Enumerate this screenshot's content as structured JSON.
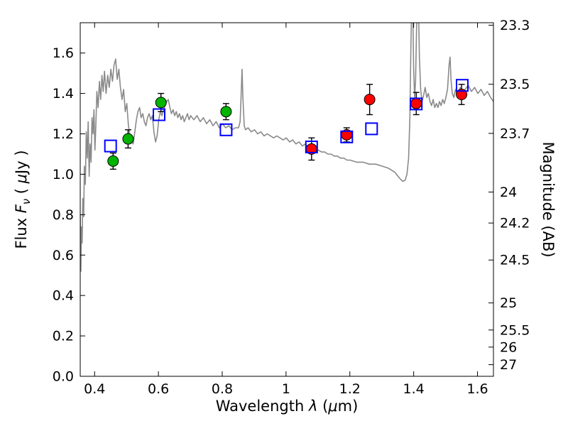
{
  "figure": {
    "background": "#ffffff",
    "frame_color": "#000000"
  },
  "chart_data": {
    "type": "scatter",
    "title": "",
    "xlabel": {
      "prefix": "Wavelength ",
      "symbol": "λ",
      "open": " (",
      "mu": "μ",
      "close": "m)"
    },
    "ylabel_left": {
      "prefix": "Flux ",
      "symbol": "F",
      "subscript": "ν",
      "open": " ( ",
      "mu": "μ",
      "close": "Jy )"
    },
    "ylabel_right": "Magnitude (AB)",
    "x_range": [
      0.355,
      1.65
    ],
    "y_range": [
      0.0,
      1.75
    ],
    "grid": false,
    "legend_position": "none",
    "x_ticks": [
      0.4,
      0.6,
      0.8,
      1.0,
      1.2,
      1.4,
      1.6
    ],
    "x_tick_labels": [
      "0.4",
      "0.6",
      "0.8",
      "1",
      "1.2",
      "1.4",
      "1.6"
    ],
    "y_ticks": [
      0.0,
      0.2,
      0.4,
      0.6,
      0.8,
      1.0,
      1.2,
      1.4,
      1.6
    ],
    "y_tick_labels": [
      "0.0",
      "0.2",
      "0.4",
      "0.6",
      "0.8",
      "1.0",
      "1.2",
      "1.4",
      "1.6"
    ],
    "right_axis": {
      "label": "Magnitude (AB)",
      "tick_values": [
        23.3,
        23.5,
        23.7,
        24.0,
        24.2,
        24.5,
        25.0,
        25.5,
        26.0,
        27.0
      ],
      "tick_labels": [
        "23.3",
        "23.5",
        "23.7",
        "24",
        "24.2",
        "24.5",
        "25",
        "25.5",
        "26",
        "27"
      ],
      "ab_zeropoint_ujy": 23.9
    },
    "series": [
      {
        "name": "model-spectrum",
        "type": "line",
        "color": "#8a8a8a",
        "linewidth": 1.6,
        "points": [
          [
            0.355,
            0.8
          ],
          [
            0.356,
            0.6
          ],
          [
            0.357,
            0.52
          ],
          [
            0.359,
            0.74
          ],
          [
            0.361,
            0.66
          ],
          [
            0.363,
            0.88
          ],
          [
            0.366,
            0.79
          ],
          [
            0.368,
            1.04
          ],
          [
            0.371,
            0.95
          ],
          [
            0.374,
            1.21
          ],
          [
            0.377,
            1.08
          ],
          [
            0.38,
            1.26
          ],
          [
            0.383,
            0.99
          ],
          [
            0.386,
            1.15
          ],
          [
            0.389,
            1.06
          ],
          [
            0.392,
            1.28
          ],
          [
            0.395,
            1.2
          ],
          [
            0.398,
            1.32
          ],
          [
            0.401,
            1.12
          ],
          [
            0.404,
            1.24
          ],
          [
            0.407,
            1.41
          ],
          [
            0.411,
            1.33
          ],
          [
            0.415,
            1.46
          ],
          [
            0.419,
            1.37
          ],
          [
            0.423,
            1.49
          ],
          [
            0.427,
            1.41
          ],
          [
            0.431,
            1.51
          ],
          [
            0.436,
            1.4
          ],
          [
            0.441,
            1.49
          ],
          [
            0.446,
            1.43
          ],
          [
            0.451,
            1.52
          ],
          [
            0.456,
            1.46
          ],
          [
            0.461,
            1.54
          ],
          [
            0.466,
            1.57
          ],
          [
            0.471,
            1.47
          ],
          [
            0.476,
            1.52
          ],
          [
            0.481,
            1.43
          ],
          [
            0.486,
            1.37
          ],
          [
            0.491,
            1.42
          ],
          [
            0.496,
            1.31
          ],
          [
            0.501,
            1.35
          ],
          [
            0.506,
            1.24
          ],
          [
            0.511,
            1.19
          ],
          [
            0.516,
            1.16
          ],
          [
            0.521,
            1.15
          ],
          [
            0.526,
            1.21
          ],
          [
            0.531,
            1.27
          ],
          [
            0.536,
            1.31
          ],
          [
            0.541,
            1.33
          ],
          [
            0.546,
            1.28
          ],
          [
            0.551,
            1.3
          ],
          [
            0.556,
            1.26
          ],
          [
            0.561,
            1.24
          ],
          [
            0.566,
            1.28
          ],
          [
            0.571,
            1.3
          ],
          [
            0.576,
            1.27
          ],
          [
            0.581,
            1.29
          ],
          [
            0.586,
            1.21
          ],
          [
            0.591,
            1.16
          ],
          [
            0.596,
            1.19
          ],
          [
            0.601,
            1.27
          ],
          [
            0.606,
            1.31
          ],
          [
            0.611,
            1.29
          ],
          [
            0.616,
            1.32
          ],
          [
            0.621,
            1.34
          ],
          [
            0.626,
            1.36
          ],
          [
            0.631,
            1.37
          ],
          [
            0.636,
            1.33
          ],
          [
            0.641,
            1.3
          ],
          [
            0.646,
            1.32
          ],
          [
            0.651,
            1.29
          ],
          [
            0.656,
            1.31
          ],
          [
            0.661,
            1.28
          ],
          [
            0.666,
            1.3
          ],
          [
            0.671,
            1.27
          ],
          [
            0.676,
            1.29
          ],
          [
            0.681,
            1.26
          ],
          [
            0.686,
            1.28
          ],
          [
            0.691,
            1.3
          ],
          [
            0.696,
            1.27
          ],
          [
            0.701,
            1.29
          ],
          [
            0.711,
            1.27
          ],
          [
            0.721,
            1.29
          ],
          [
            0.731,
            1.26
          ],
          [
            0.741,
            1.28
          ],
          [
            0.751,
            1.25
          ],
          [
            0.761,
            1.27
          ],
          [
            0.771,
            1.24
          ],
          [
            0.781,
            1.26
          ],
          [
            0.791,
            1.23
          ],
          [
            0.801,
            1.25
          ],
          [
            0.811,
            1.23
          ],
          [
            0.821,
            1.24
          ],
          [
            0.831,
            1.22
          ],
          [
            0.841,
            1.23
          ],
          [
            0.851,
            1.23
          ],
          [
            0.856,
            1.26
          ],
          [
            0.859,
            1.38
          ],
          [
            0.862,
            1.52
          ],
          [
            0.865,
            1.37
          ],
          [
            0.869,
            1.24
          ],
          [
            0.873,
            1.22
          ],
          [
            0.881,
            1.23
          ],
          [
            0.891,
            1.21
          ],
          [
            0.901,
            1.22
          ],
          [
            0.911,
            1.2
          ],
          [
            0.921,
            1.21
          ],
          [
            0.931,
            1.19
          ],
          [
            0.941,
            1.2
          ],
          [
            0.951,
            1.19
          ],
          [
            0.961,
            1.18
          ],
          [
            0.971,
            1.19
          ],
          [
            0.981,
            1.18
          ],
          [
            0.991,
            1.17
          ],
          [
            1.001,
            1.18
          ],
          [
            1.011,
            1.16
          ],
          [
            1.021,
            1.17
          ],
          [
            1.031,
            1.15
          ],
          [
            1.041,
            1.16
          ],
          [
            1.051,
            1.14
          ],
          [
            1.061,
            1.15
          ],
          [
            1.071,
            1.13
          ],
          [
            1.081,
            1.13
          ],
          [
            1.091,
            1.12
          ],
          [
            1.101,
            1.12
          ],
          [
            1.111,
            1.11
          ],
          [
            1.121,
            1.11
          ],
          [
            1.131,
            1.1
          ],
          [
            1.141,
            1.1
          ],
          [
            1.151,
            1.09
          ],
          [
            1.161,
            1.09
          ],
          [
            1.171,
            1.08
          ],
          [
            1.181,
            1.08
          ],
          [
            1.191,
            1.07
          ],
          [
            1.201,
            1.07
          ],
          [
            1.221,
            1.06
          ],
          [
            1.241,
            1.06
          ],
          [
            1.261,
            1.05
          ],
          [
            1.281,
            1.05
          ],
          [
            1.301,
            1.04
          ],
          [
            1.321,
            1.03
          ],
          [
            1.341,
            1.01
          ],
          [
            1.351,
            0.99
          ],
          [
            1.359,
            0.975
          ],
          [
            1.366,
            0.965
          ],
          [
            1.373,
            0.97
          ],
          [
            1.379,
            1.0
          ],
          [
            1.384,
            1.08
          ],
          [
            1.388,
            1.28
          ],
          [
            1.391,
            1.6
          ],
          [
            1.394,
            1.85
          ],
          [
            1.397,
            1.85
          ],
          [
            1.4,
            1.52
          ],
          [
            1.403,
            1.38
          ],
          [
            1.406,
            1.46
          ],
          [
            1.409,
            1.72
          ],
          [
            1.412,
            1.85
          ],
          [
            1.415,
            1.85
          ],
          [
            1.418,
            1.58
          ],
          [
            1.422,
            1.42
          ],
          [
            1.426,
            1.36
          ],
          [
            1.431,
            1.39
          ],
          [
            1.436,
            1.43
          ],
          [
            1.441,
            1.38
          ],
          [
            1.446,
            1.4
          ],
          [
            1.451,
            1.36
          ],
          [
            1.456,
            1.34
          ],
          [
            1.461,
            1.37
          ],
          [
            1.466,
            1.33
          ],
          [
            1.471,
            1.35
          ],
          [
            1.476,
            1.33
          ],
          [
            1.481,
            1.36
          ],
          [
            1.486,
            1.34
          ],
          [
            1.491,
            1.37
          ],
          [
            1.496,
            1.35
          ],
          [
            1.501,
            1.38
          ],
          [
            1.506,
            1.42
          ],
          [
            1.511,
            1.54
          ],
          [
            1.514,
            1.58
          ],
          [
            1.517,
            1.47
          ],
          [
            1.521,
            1.4
          ],
          [
            1.526,
            1.38
          ],
          [
            1.531,
            1.42
          ],
          [
            1.536,
            1.39
          ],
          [
            1.541,
            1.41
          ],
          [
            1.546,
            1.43
          ],
          [
            1.551,
            1.4
          ],
          [
            1.561,
            1.42
          ],
          [
            1.571,
            1.44
          ],
          [
            1.581,
            1.41
          ],
          [
            1.591,
            1.43
          ],
          [
            1.601,
            1.4
          ],
          [
            1.611,
            1.42
          ],
          [
            1.621,
            1.39
          ],
          [
            1.631,
            1.41
          ],
          [
            1.641,
            1.38
          ],
          [
            1.65,
            1.36
          ]
        ]
      },
      {
        "name": "green-photometry",
        "type": "scatter",
        "marker": "circle",
        "color": "#00b400",
        "edge": "#000000",
        "x": [
          0.458,
          0.505,
          0.608,
          0.812
        ],
        "y": [
          1.065,
          1.175,
          1.355,
          1.31
        ],
        "yerr": [
          0.04,
          0.045,
          0.045,
          0.04
        ]
      },
      {
        "name": "red-photometry",
        "type": "scatter",
        "marker": "circle",
        "color": "#ff0000",
        "edge": "#000000",
        "x": [
          1.08,
          1.19,
          1.262,
          1.408,
          1.55
        ],
        "y": [
          1.125,
          1.195,
          1.37,
          1.35,
          1.395
        ],
        "yerr": [
          0.055,
          0.035,
          0.075,
          0.055,
          0.05
        ]
      },
      {
        "name": "model-photometry",
        "type": "scatter",
        "marker": "open-square",
        "color": "#0000ff",
        "edge": "#0000ff",
        "x": [
          0.45,
          0.602,
          0.812,
          1.08,
          1.19,
          1.268,
          1.408,
          1.552
        ],
        "y": [
          1.14,
          1.295,
          1.22,
          1.135,
          1.185,
          1.225,
          1.348,
          1.44
        ]
      }
    ]
  }
}
